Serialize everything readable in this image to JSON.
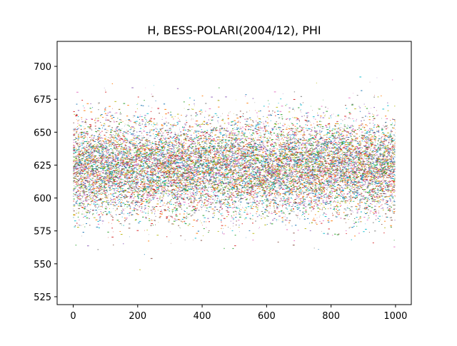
{
  "chart_data": {
    "type": "line",
    "title": "H, BESS-POLARI(2004/12), PHI",
    "xlabel": "",
    "ylabel": "",
    "xlim": [
      -49.95,
      1048.95
    ],
    "ylim": [
      519,
      719
    ],
    "x_ticks": [
      0,
      200,
      400,
      600,
      800,
      1000
    ],
    "y_ticks": [
      525,
      550,
      575,
      600,
      625,
      650,
      675,
      700
    ],
    "x_tick_labels": [
      "0",
      "200",
      "400",
      "600",
      "800",
      "1000"
    ],
    "y_tick_labels": [
      "525",
      "550",
      "575",
      "600",
      "625",
      "650",
      "675",
      "700"
    ],
    "grid": false,
    "legend": "none",
    "n_points": 1000,
    "x_range": [
      0,
      999
    ],
    "central_value": 623,
    "spread_sd": 18,
    "n_series": 100,
    "series_colors": [
      "#1f77b4",
      "#ff7f0e",
      "#2ca02c",
      "#d62728",
      "#9467bd",
      "#8c564b",
      "#e377c2",
      "#7f7f7f",
      "#bcbd22",
      "#17becf"
    ]
  }
}
